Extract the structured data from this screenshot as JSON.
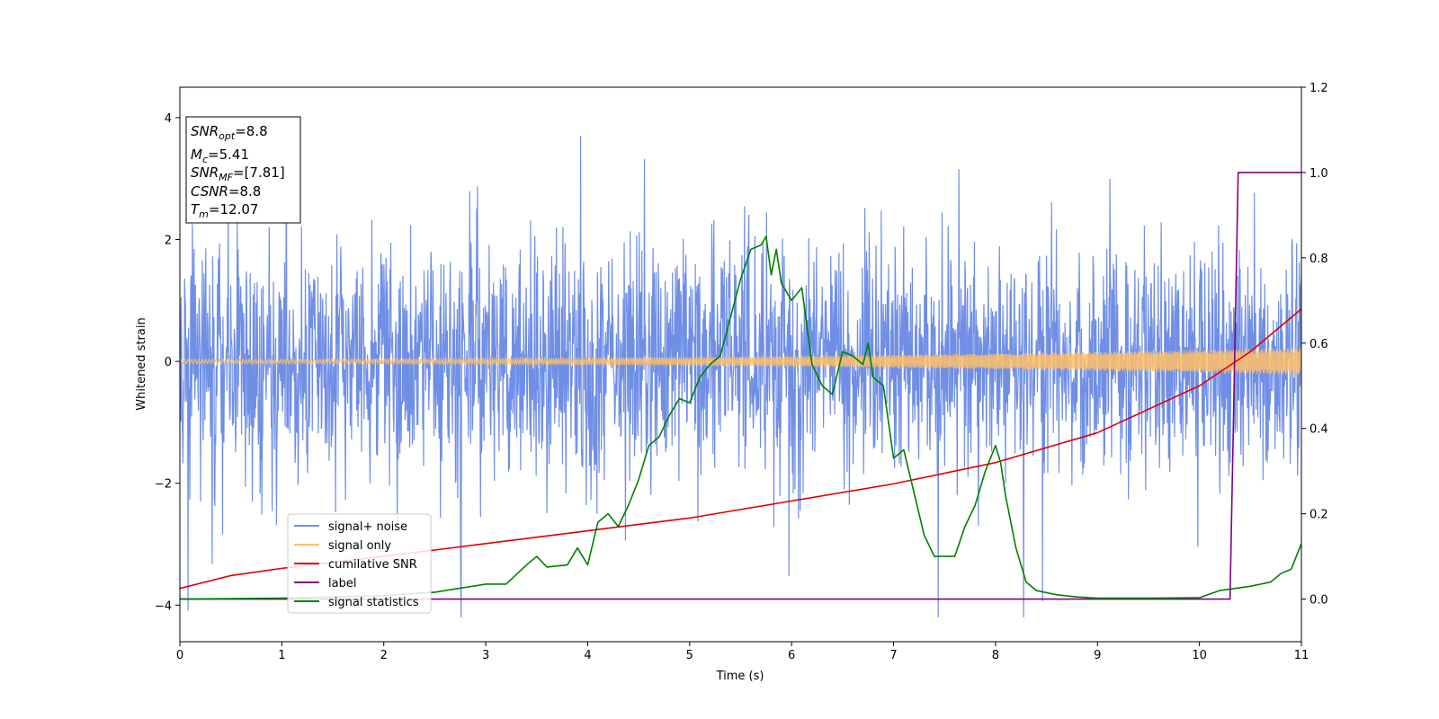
{
  "chart_data": {
    "type": "line",
    "xlabel": "Time (s)",
    "ylabel": "Whitened strain",
    "xlim": [
      0,
      11
    ],
    "ylim_left": [
      -4.6,
      4.5
    ],
    "ylim_right": [
      -0.1,
      1.2
    ],
    "x_ticks": [
      "0",
      "1",
      "2",
      "3",
      "4",
      "5",
      "6",
      "7",
      "8",
      "9",
      "10",
      "11"
    ],
    "y_left_ticks": [
      "−4",
      "−2",
      "0",
      "2",
      "4"
    ],
    "y_right_ticks": [
      "0.0",
      "0.2",
      "0.4",
      "0.6",
      "0.8",
      "1.0",
      "1.2"
    ],
    "info_box": {
      "snr_opt": {
        "sym": "SNR",
        "sub": "opt",
        "val": "=8.8"
      },
      "mc": {
        "sym": "M",
        "sub": "c",
        "val": "=5.41"
      },
      "snr_mf": {
        "sym": "SNR",
        "sub": "MF",
        "val": "=[7.81]"
      },
      "csnr": {
        "sym": "CSNR",
        "val": "=8.8"
      },
      "tm": {
        "sym": "T",
        "sub": "m",
        "val": "=12.07"
      }
    },
    "legend_position": "lower-left",
    "series": [
      {
        "name": "signal+ noise",
        "color": "#6f8ee6",
        "axis": "left",
        "type": "noise",
        "std": 0.95,
        "x_range": [
          0,
          11
        ]
      },
      {
        "name": "signal only",
        "color": "#ffc066",
        "axis": "left",
        "type": "chirp",
        "amplitude_start": 0.035,
        "amplitude_end": 0.22,
        "x_range": [
          0,
          11
        ]
      },
      {
        "name": "cumilative SNR",
        "color": "#e00000",
        "axis": "right",
        "x": [
          0,
          0.5,
          1,
          2,
          3,
          4,
          5,
          6,
          7,
          8,
          9,
          10,
          10.5,
          11
        ],
        "y": [
          0.025,
          0.055,
          0.072,
          0.1,
          0.13,
          0.16,
          0.19,
          0.23,
          0.27,
          0.32,
          0.39,
          0.5,
          0.58,
          0.68
        ]
      },
      {
        "name": "label",
        "color": "#800080",
        "axis": "right",
        "x": [
          0,
          10.3,
          10.38,
          11
        ],
        "y": [
          0,
          0,
          1,
          1
        ]
      },
      {
        "name": "signal statistics",
        "color": "#008000",
        "axis": "right",
        "x": [
          0,
          1,
          2,
          2.5,
          3,
          3.2,
          3.4,
          3.5,
          3.6,
          3.8,
          3.9,
          4.0,
          4.1,
          4.2,
          4.3,
          4.4,
          4.5,
          4.6,
          4.7,
          4.8,
          4.9,
          5.0,
          5.1,
          5.2,
          5.3,
          5.4,
          5.5,
          5.6,
          5.7,
          5.75,
          5.8,
          5.85,
          5.9,
          6.0,
          6.1,
          6.2,
          6.3,
          6.4,
          6.5,
          6.6,
          6.7,
          6.75,
          6.8,
          6.9,
          7.0,
          7.1,
          7.2,
          7.3,
          7.4,
          7.6,
          7.7,
          7.8,
          7.9,
          8.0,
          8.05,
          8.1,
          8.2,
          8.3,
          8.4,
          8.6,
          8.8,
          9.0,
          9.5,
          10.0,
          10.2,
          10.5,
          10.7,
          10.8,
          10.9,
          11.0
        ],
        "y": [
          0,
          0.002,
          0.008,
          0.016,
          0.035,
          0.035,
          0.08,
          0.1,
          0.075,
          0.08,
          0.12,
          0.08,
          0.18,
          0.2,
          0.17,
          0.22,
          0.28,
          0.36,
          0.38,
          0.43,
          0.47,
          0.46,
          0.52,
          0.55,
          0.57,
          0.66,
          0.75,
          0.82,
          0.83,
          0.85,
          0.76,
          0.82,
          0.74,
          0.7,
          0.73,
          0.55,
          0.5,
          0.48,
          0.58,
          0.57,
          0.55,
          0.6,
          0.52,
          0.5,
          0.33,
          0.35,
          0.25,
          0.15,
          0.1,
          0.1,
          0.17,
          0.22,
          0.3,
          0.36,
          0.32,
          0.24,
          0.12,
          0.04,
          0.02,
          0.01,
          0.005,
          0.002,
          0.002,
          0.003,
          0.02,
          0.03,
          0.04,
          0.06,
          0.07,
          0.13
        ]
      }
    ]
  }
}
